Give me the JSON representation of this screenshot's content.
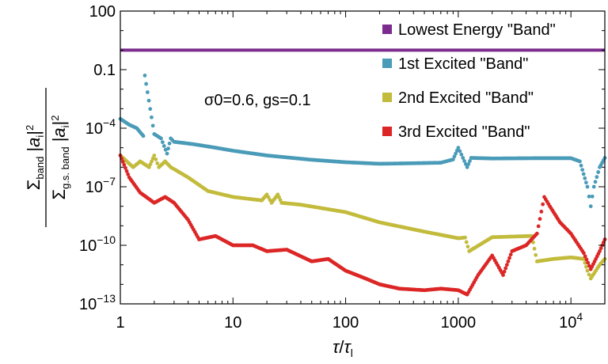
{
  "chart_data": {
    "type": "scatter",
    "title": "",
    "xlabel": "τ/τ_l",
    "ylabel": "Σ_band |a_i|² / Σ_g.s. band |a_i|²",
    "xscale": "log",
    "yscale": "log",
    "xlim": [
      1,
      20000
    ],
    "ylim": [
      1e-13,
      100
    ],
    "annotation": "σ0=0.6, gs=0.1",
    "x_ticks": [
      {
        "value": 1,
        "label": "1"
      },
      {
        "value": 10,
        "label": "10"
      },
      {
        "value": 100,
        "label": "100"
      },
      {
        "value": 1000,
        "label": "1000"
      },
      {
        "value": 10000,
        "label": "10^4"
      }
    ],
    "y_ticks": [
      {
        "value": 1e-13,
        "label": "10^-13"
      },
      {
        "value": 1e-10,
        "label": "10^-10"
      },
      {
        "value": 1e-07,
        "label": "10^-7"
      },
      {
        "value": 0.0001,
        "label": "10^-4"
      },
      {
        "value": 0.1,
        "label": "0.1"
      },
      {
        "value": 100,
        "label": "100"
      }
    ],
    "series": [
      {
        "name": "Lowest Energy \"Band\"",
        "color": "#7b2c8e",
        "style": "line",
        "x": [
          1,
          20000
        ],
        "y": [
          1.0,
          1.0
        ]
      },
      {
        "name": "1st Excited \"Band\"",
        "color": "#4a9bb8",
        "style": "points",
        "x": [
          1,
          1.2,
          1.4,
          1.6,
          1.65,
          2,
          2.3,
          2.6,
          2.8,
          3,
          3.5,
          4.5,
          7,
          10,
          20,
          50,
          100,
          200,
          400,
          700,
          900,
          1000,
          1100,
          1200,
          1300,
          2000,
          5000,
          10000,
          12000,
          14000,
          15000,
          16000,
          18000,
          20000
        ],
        "y": [
          0.0003,
          0.00015,
          0.0001,
          4e-05,
          0.05,
          5e-05,
          3e-05,
          5e-06,
          3e-05,
          2e-05,
          1.8e-05,
          1.5e-05,
          1e-05,
          7e-06,
          4e-06,
          2.4e-06,
          1.8e-06,
          1.5e-06,
          1.6e-06,
          1.7e-06,
          2.5e-06,
          1e-05,
          3e-06,
          1e-06,
          3e-06,
          2.8e-06,
          2.9e-06,
          2.9e-06,
          2e-06,
          1e-07,
          1e-08,
          1e-07,
          1e-06,
          3e-06
        ]
      },
      {
        "name": "2nd Excited \"Band\"",
        "color": "#c2bb3c",
        "style": "points",
        "x": [
          1,
          1.3,
          1.5,
          1.8,
          2,
          2.2,
          2.5,
          2.8,
          3,
          4,
          6,
          10,
          18,
          20,
          22,
          25,
          27,
          40,
          100,
          200,
          500,
          1000,
          1150,
          1250,
          2000,
          4500,
          5000,
          7000,
          10000,
          13000,
          14000,
          15000,
          18000,
          20000
        ],
        "y": [
          4e-06,
          1e-06,
          2e-06,
          1e-06,
          4e-06,
          1e-06,
          2e-06,
          1e-06,
          8e-07,
          3e-07,
          6e-08,
          3e-08,
          2e-08,
          4e-08,
          1.5e-08,
          4e-08,
          1.5e-08,
          1.2e-08,
          5e-09,
          1.5e-09,
          5e-10,
          2.3e-10,
          2.5e-10,
          5e-11,
          2.6e-10,
          3e-10,
          1.5e-11,
          2e-11,
          2.4e-11,
          2e-11,
          5e-12,
          2e-12,
          1e-11,
          2e-11
        ]
      },
      {
        "name": "3rd Excited \"Band\"",
        "color": "#dc2626",
        "style": "points",
        "x": [
          1,
          1.2,
          1.5,
          2,
          2.5,
          3,
          4,
          5,
          7,
          10,
          15,
          20,
          30,
          50,
          70,
          100,
          150,
          200,
          300,
          500,
          700,
          1000,
          1200,
          1500,
          2000,
          2500,
          3000,
          4000,
          5000,
          5800,
          6500,
          8000,
          10000,
          13000,
          15000,
          18000,
          20000
        ],
        "y": [
          4e-06,
          3e-07,
          5e-08,
          1.5e-08,
          3e-08,
          1.5e-08,
          2e-09,
          2e-10,
          3e-10,
          1e-10,
          1e-10,
          5e-11,
          6e-11,
          1.5e-11,
          2e-11,
          5e-12,
          2e-12,
          1e-12,
          6e-13,
          5e-13,
          6e-13,
          5e-13,
          3e-13,
          3e-12,
          3e-11,
          3e-12,
          5e-11,
          1e-10,
          4e-10,
          3e-08,
          1e-08,
          1.5e-09,
          4e-10,
          4e-11,
          6e-12,
          5e-11,
          2e-10
        ]
      }
    ]
  }
}
